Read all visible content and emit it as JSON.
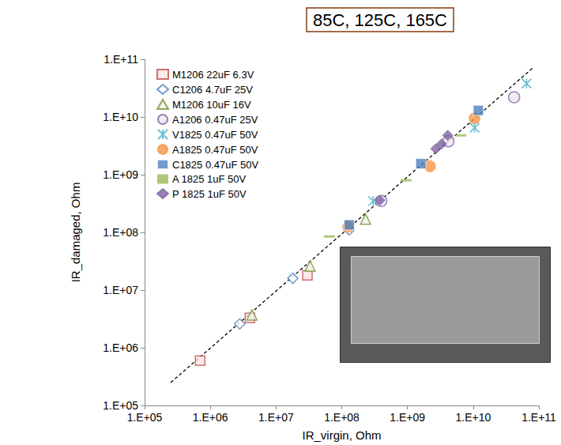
{
  "chart_data": {
    "type": "scatter",
    "title": "85C, 125C, 165C",
    "x_label": "IR_virgin, Ohm",
    "y_label": "IR_damaged, Ohm",
    "log": true,
    "grid": false,
    "legend": "top-left",
    "xlim": [
      100000,
      100000000000
    ],
    "ylim": [
      100000,
      100000000000
    ],
    "xticks": [
      {
        "value": 100000,
        "label": "1.E+05"
      },
      {
        "value": 1000000,
        "label": "1.E+06"
      },
      {
        "value": 10000000,
        "label": "1.E+07"
      },
      {
        "value": 100000000,
        "label": "1.E+08"
      },
      {
        "value": 1000000000,
        "label": "1.E+09"
      },
      {
        "value": 10000000000,
        "label": "1.E+10"
      },
      {
        "value": 100000000000,
        "label": "1.E+11"
      }
    ],
    "yticks": [
      {
        "value": 100000,
        "label": "1.E+05"
      },
      {
        "value": 1000000,
        "label": "1.E+06"
      },
      {
        "value": 10000000,
        "label": "1.E+07"
      },
      {
        "value": 100000000,
        "label": "1.E+08"
      },
      {
        "value": 1000000000,
        "label": "1.E+09"
      },
      {
        "value": 10000000000,
        "label": "1.E+10"
      },
      {
        "value": 100000000000,
        "label": "1.E+11"
      }
    ],
    "series": [
      {
        "name": "M1206 22uF 6.3V",
        "color": "#c0504d",
        "marker": "open_square",
        "x": [
          700000,
          4000000,
          30000000
        ],
        "values": [
          600000,
          3300000,
          18000000
        ]
      },
      {
        "name": "C1206 4.7uF 25V",
        "color": "#4f81bd",
        "marker": "open_diamond",
        "x": [
          2800000,
          18000000,
          130000000
        ],
        "values": [
          2600000,
          16000000,
          110000000
        ]
      },
      {
        "name": "M1206 10uF 16V",
        "color": "#77933c",
        "marker": "open_triangle",
        "x": [
          4300000,
          33000000,
          230000000
        ],
        "values": [
          3700000,
          26000000,
          170000000
        ]
      },
      {
        "name": "A1206 0.47uF 25V",
        "color": "#8064a2",
        "marker": "open_circle",
        "x": [
          400000000,
          4200000000,
          42000000000
        ],
        "values": [
          350000000,
          3800000000,
          22000000000
        ]
      },
      {
        "name": "V1825 0.47uF 50V",
        "color": "#4bacc6",
        "marker": "x",
        "x": [
          300000000,
          10500000000,
          65000000000
        ],
        "values": [
          350000000,
          6500000000,
          38000000000
        ]
      },
      {
        "name": "A1825 0.47uF 50V",
        "color": "#f79646",
        "marker": "circle",
        "x": [
          125000000,
          2200000000,
          10500000000
        ],
        "values": [
          125000000,
          1400000000,
          9500000000
        ]
      },
      {
        "name": "C1825 0.47uF 50V",
        "color": "#4f81bd",
        "marker": "square",
        "x": [
          130000000,
          1600000000,
          12000000000
        ],
        "values": [
          135000000,
          1550000000,
          13000000000
        ]
      },
      {
        "name": "A 1825 1uF 50V",
        "color": "#9bbb59",
        "marker": "dash",
        "x": [
          65000000,
          950000000,
          6500000000
        ],
        "values": [
          85000000,
          800000000,
          4800000000
        ]
      },
      {
        "name": "P 1825 1uF 50V",
        "color": "#8064a2",
        "marker": "diamond",
        "x": [
          380000000,
          2700000000,
          3300000000,
          4100000000
        ],
        "values": [
          360000000,
          2800000000,
          3400000000,
          4800000000
        ]
      }
    ],
    "fit_line": {
      "x": [
        250000,
        80000000000
      ],
      "values": [
        250000,
        70000000000
      ],
      "color": "#000000",
      "line_style": "dashed"
    }
  }
}
